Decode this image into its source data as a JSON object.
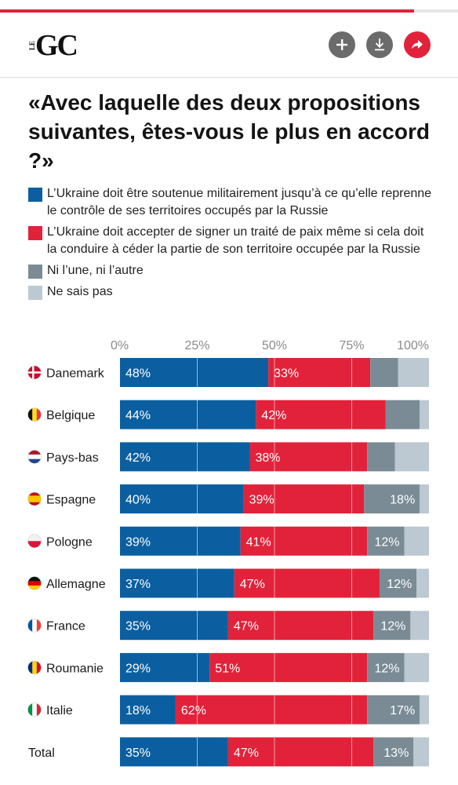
{
  "header": {
    "logo_small": "LE",
    "logo_main": "GC",
    "add_icon": "plus-icon",
    "download_icon": "download-icon",
    "share_icon": "share-arrow-icon"
  },
  "title": "«Avec laquelle des deux propositions suivantes, êtes-vous le plus en accord ?»",
  "legend": [
    {
      "label": "L’Ukraine doit être soutenue militairement jusqu’à ce qu’elle reprenne le contrôle de ses territoires occupés par la Russie",
      "color": "#0b5fa0"
    },
    {
      "label": "L’Ukraine doit accepter de signer un traité de paix même si cela doit la conduire à céder la partie de son territoire occupée par la Russie",
      "color": "#e2223a"
    },
    {
      "label": "Ni l’une, ni l’autre",
      "color": "#7a8b95"
    },
    {
      "label": "Ne sais pas",
      "color": "#bcc9d2"
    }
  ],
  "chart_data": {
    "type": "bar",
    "orientation": "horizontal",
    "stacked": true,
    "xlim": [
      0,
      100
    ],
    "x_ticks": [
      "0%",
      "25%",
      "50%",
      "75%",
      "100%"
    ],
    "categories": [
      "Danemark",
      "Belgique",
      "Pays-bas",
      "Espagne",
      "Pologne",
      "Allemagne",
      "France",
      "Roumanie",
      "Italie",
      "Total"
    ],
    "flags": [
      "dk",
      "be",
      "nl",
      "es",
      "pl",
      "de",
      "fr",
      "ro",
      "it",
      ""
    ],
    "series": [
      {
        "name": "L’Ukraine doit être soutenue militairement jusqu’à ce qu’elle reprenne le contrôle de ses territoires occupés par la Russie",
        "color": "#0b5fa0",
        "values": [
          48,
          44,
          42,
          40,
          39,
          37,
          35,
          29,
          18,
          35
        ]
      },
      {
        "name": "L’Ukraine doit accepter de signer un traité de paix même si cela doit la conduire à céder la partie de son territoire occupée par la Russie",
        "color": "#e2223a",
        "values": [
          33,
          42,
          38,
          39,
          41,
          47,
          47,
          51,
          62,
          47
        ]
      },
      {
        "name": "Ni l’une, ni l’autre",
        "color": "#7a8b95",
        "values": [
          9,
          11,
          9,
          18,
          12,
          12,
          12,
          12,
          17,
          13
        ]
      },
      {
        "name": "Ne sais pas",
        "color": "#bcc9d2",
        "values": [
          10,
          3,
          11,
          3,
          8,
          4,
          6,
          8,
          3,
          5
        ]
      }
    ],
    "data_labels": [
      [
        "48%",
        "33%",
        "",
        ""
      ],
      [
        "44%",
        "42%",
        "",
        ""
      ],
      [
        "42%",
        "38%",
        "",
        ""
      ],
      [
        "40%",
        "39%",
        "18%",
        ""
      ],
      [
        "39%",
        "41%",
        "12%",
        ""
      ],
      [
        "37%",
        "47%",
        "12%",
        ""
      ],
      [
        "35%",
        "47%",
        "12%",
        ""
      ],
      [
        "29%",
        "51%",
        "12%",
        ""
      ],
      [
        "18%",
        "62%",
        "17%",
        ""
      ],
      [
        "35%",
        "47%",
        "13%",
        ""
      ]
    ]
  }
}
